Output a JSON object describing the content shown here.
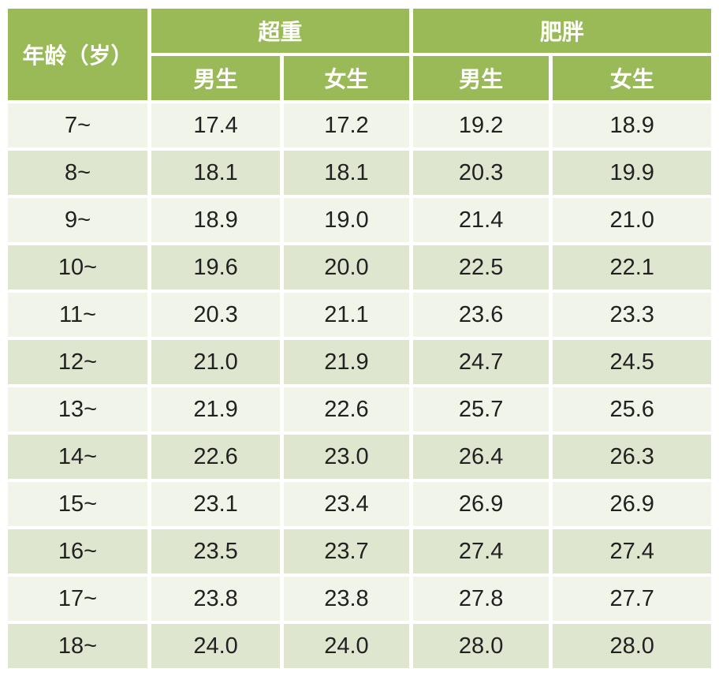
{
  "colors": {
    "header_green": "#9aba58",
    "row_light": "#f1f4e9",
    "row_dark": "#dfe6d0",
    "header_text": "#ffffff",
    "cell_text": "#212121",
    "background": "#ffffff"
  },
  "chart_data": {
    "type": "table",
    "header": {
      "age": "年龄（岁）",
      "overweight": "超重",
      "obese": "肥胖",
      "male": "男生",
      "female": "女生"
    },
    "columns": [
      "age",
      "overweight_male",
      "overweight_female",
      "obese_male",
      "obese_female"
    ],
    "rows": [
      {
        "age": "7~",
        "overweight_male": "17.4",
        "overweight_female": "17.2",
        "obese_male": "19.2",
        "obese_female": "18.9"
      },
      {
        "age": "8~",
        "overweight_male": "18.1",
        "overweight_female": "18.1",
        "obese_male": "20.3",
        "obese_female": "19.9"
      },
      {
        "age": "9~",
        "overweight_male": "18.9",
        "overweight_female": "19.0",
        "obese_male": "21.4",
        "obese_female": "21.0"
      },
      {
        "age": "10~",
        "overweight_male": "19.6",
        "overweight_female": "20.0",
        "obese_male": "22.5",
        "obese_female": "22.1"
      },
      {
        "age": "11~",
        "overweight_male": "20.3",
        "overweight_female": "21.1",
        "obese_male": "23.6",
        "obese_female": "23.3"
      },
      {
        "age": "12~",
        "overweight_male": "21.0",
        "overweight_female": "21.9",
        "obese_male": "24.7",
        "obese_female": "24.5"
      },
      {
        "age": "13~",
        "overweight_male": "21.9",
        "overweight_female": "22.6",
        "obese_male": "25.7",
        "obese_female": "25.6"
      },
      {
        "age": "14~",
        "overweight_male": "22.6",
        "overweight_female": "23.0",
        "obese_male": "26.4",
        "obese_female": "26.3"
      },
      {
        "age": "15~",
        "overweight_male": "23.1",
        "overweight_female": "23.4",
        "obese_male": "26.9",
        "obese_female": "26.9"
      },
      {
        "age": "16~",
        "overweight_male": "23.5",
        "overweight_female": "23.7",
        "obese_male": "27.4",
        "obese_female": "27.4"
      },
      {
        "age": "17~",
        "overweight_male": "23.8",
        "overweight_female": "23.8",
        "obese_male": "27.8",
        "obese_female": "27.7"
      },
      {
        "age": "18~",
        "overweight_male": "24.0",
        "overweight_female": "24.0",
        "obese_male": "28.0",
        "obese_female": "28.0"
      }
    ]
  }
}
